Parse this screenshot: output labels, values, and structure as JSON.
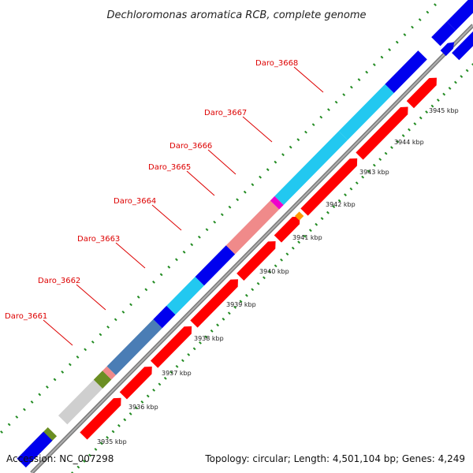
{
  "title": "Dechloromonas aromatica RCB, complete genome",
  "footer": {
    "accession": "Accession: NC_007298",
    "summary": "Topology: circular; Length: 4,501,104 bp; Genes: 4,249"
  },
  "colors": {
    "backbone": "#8a8a8a",
    "tick": "#228b22",
    "label": "#dd0000",
    "cds": "#ff0000",
    "outer_blue": "#0000ee",
    "outer_cyan": "#22c8f0",
    "outer_pink": "#f08a8a",
    "outer_steel": "#4a7db5",
    "outer_grey": "#cfcfcf",
    "outer_olive": "#6b8e23",
    "outer_magenta": "#ee00cc",
    "outer_orange": "#ff9900"
  },
  "ticks": [
    {
      "label": "3935 kbp"
    },
    {
      "label": "3936 kbp"
    },
    {
      "label": "3937 kbp"
    },
    {
      "label": "3938 kbp"
    },
    {
      "label": "3939 kbp"
    },
    {
      "label": "3940 kbp"
    },
    {
      "label": "3941 kbp"
    },
    {
      "label": "3942 kbp"
    },
    {
      "label": "3943 kbp"
    },
    {
      "label": "3944 kbp"
    },
    {
      "label": "3945 kbp"
    }
  ],
  "gene_labels": [
    {
      "label": "Daro_3661"
    },
    {
      "label": "Daro_3662"
    },
    {
      "label": "Daro_3663"
    },
    {
      "label": "Daro_3664"
    },
    {
      "label": "Daro_3665"
    },
    {
      "label": "Daro_3666"
    },
    {
      "label": "Daro_3667"
    },
    {
      "label": "Daro_3668"
    }
  ]
}
